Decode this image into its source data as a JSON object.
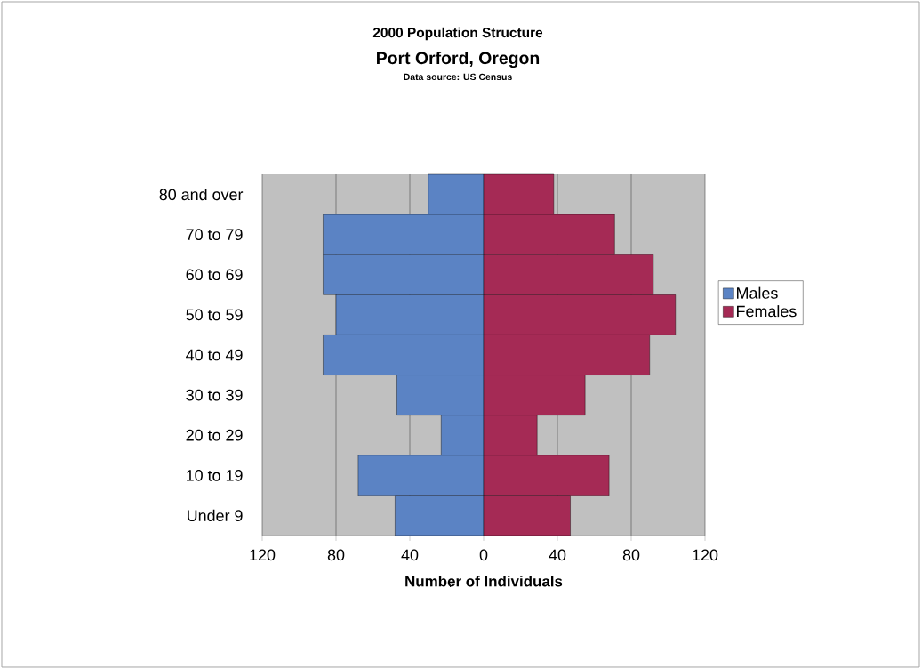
{
  "chart_data": {
    "type": "bar",
    "orientation": "horizontal",
    "title": "2000 Population Structure",
    "subtitle": "Port Orford, Oregon",
    "annotations": [
      "Data source: US Census"
    ],
    "xlabel": "Number of Individuals",
    "categories": [
      "80 and over",
      "70 to 79",
      "60 to 69",
      "50 to 59",
      "40 to 49",
      "30 to 39",
      "20 to 29",
      "10 to 19",
      "Under 9"
    ],
    "series": [
      {
        "name": "Males",
        "color": "#5b83c4",
        "values": [
          -30,
          -87,
          -87,
          -80,
          -87,
          -47,
          -23,
          -68,
          -48
        ]
      },
      {
        "name": "Females",
        "color": "#a52a55",
        "values": [
          38,
          71,
          92,
          104,
          90,
          55,
          29,
          68,
          47
        ]
      }
    ],
    "xlim": [
      -120,
      120
    ],
    "xticks": [
      {
        "value": -120,
        "label": "120"
      },
      {
        "value": -80,
        "label": "80"
      },
      {
        "value": -40,
        "label": "40"
      },
      0,
      40,
      80,
      120
    ],
    "grid": "x",
    "legend": "right",
    "stacked": true
  }
}
